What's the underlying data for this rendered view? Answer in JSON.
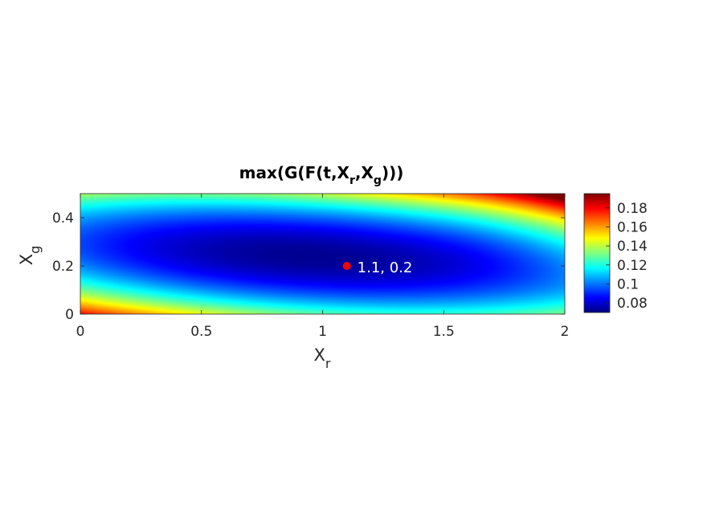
{
  "chart_data": {
    "type": "heatmap",
    "title": {
      "main": "max(G(F(t,X",
      "sub1": "r",
      "mid": ",X",
      "sub2": "g",
      "end": ")))"
    },
    "xlabel": {
      "main": "X",
      "sub": "r"
    },
    "ylabel": {
      "main": "X",
      "sub": "g"
    },
    "xlim": [
      0,
      2
    ],
    "ylim": [
      0,
      0.5
    ],
    "xticks": [
      0,
      0.5,
      1,
      1.5,
      2
    ],
    "xtick_labels": [
      "0",
      "0.5",
      "1",
      "1.5",
      "2"
    ],
    "yticks": [
      0,
      0.2,
      0.4
    ],
    "ytick_labels": [
      "0",
      "0.2",
      "0.4"
    ],
    "colormap": "jet",
    "clim": [
      0.07,
      0.195
    ],
    "colorbar_ticks": [
      0.08,
      0.1,
      0.12,
      0.14,
      0.16,
      0.18
    ],
    "colorbar_tick_labels": [
      "0.08",
      "0.1",
      "0.12",
      "0.14",
      "0.16",
      "0.18"
    ],
    "field": {
      "min_value": 0.072,
      "min_location": [
        0.95,
        0.24
      ],
      "corner_values": {
        "x0_y0": 0.19,
        "x2_y0.5": 0.19,
        "x0_y0.5": 0.12,
        "x2_y0": 0.13
      }
    },
    "marker": {
      "x": 1.1,
      "y": 0.2,
      "label": "1.1, 0.2",
      "color": "#ff0000"
    }
  }
}
